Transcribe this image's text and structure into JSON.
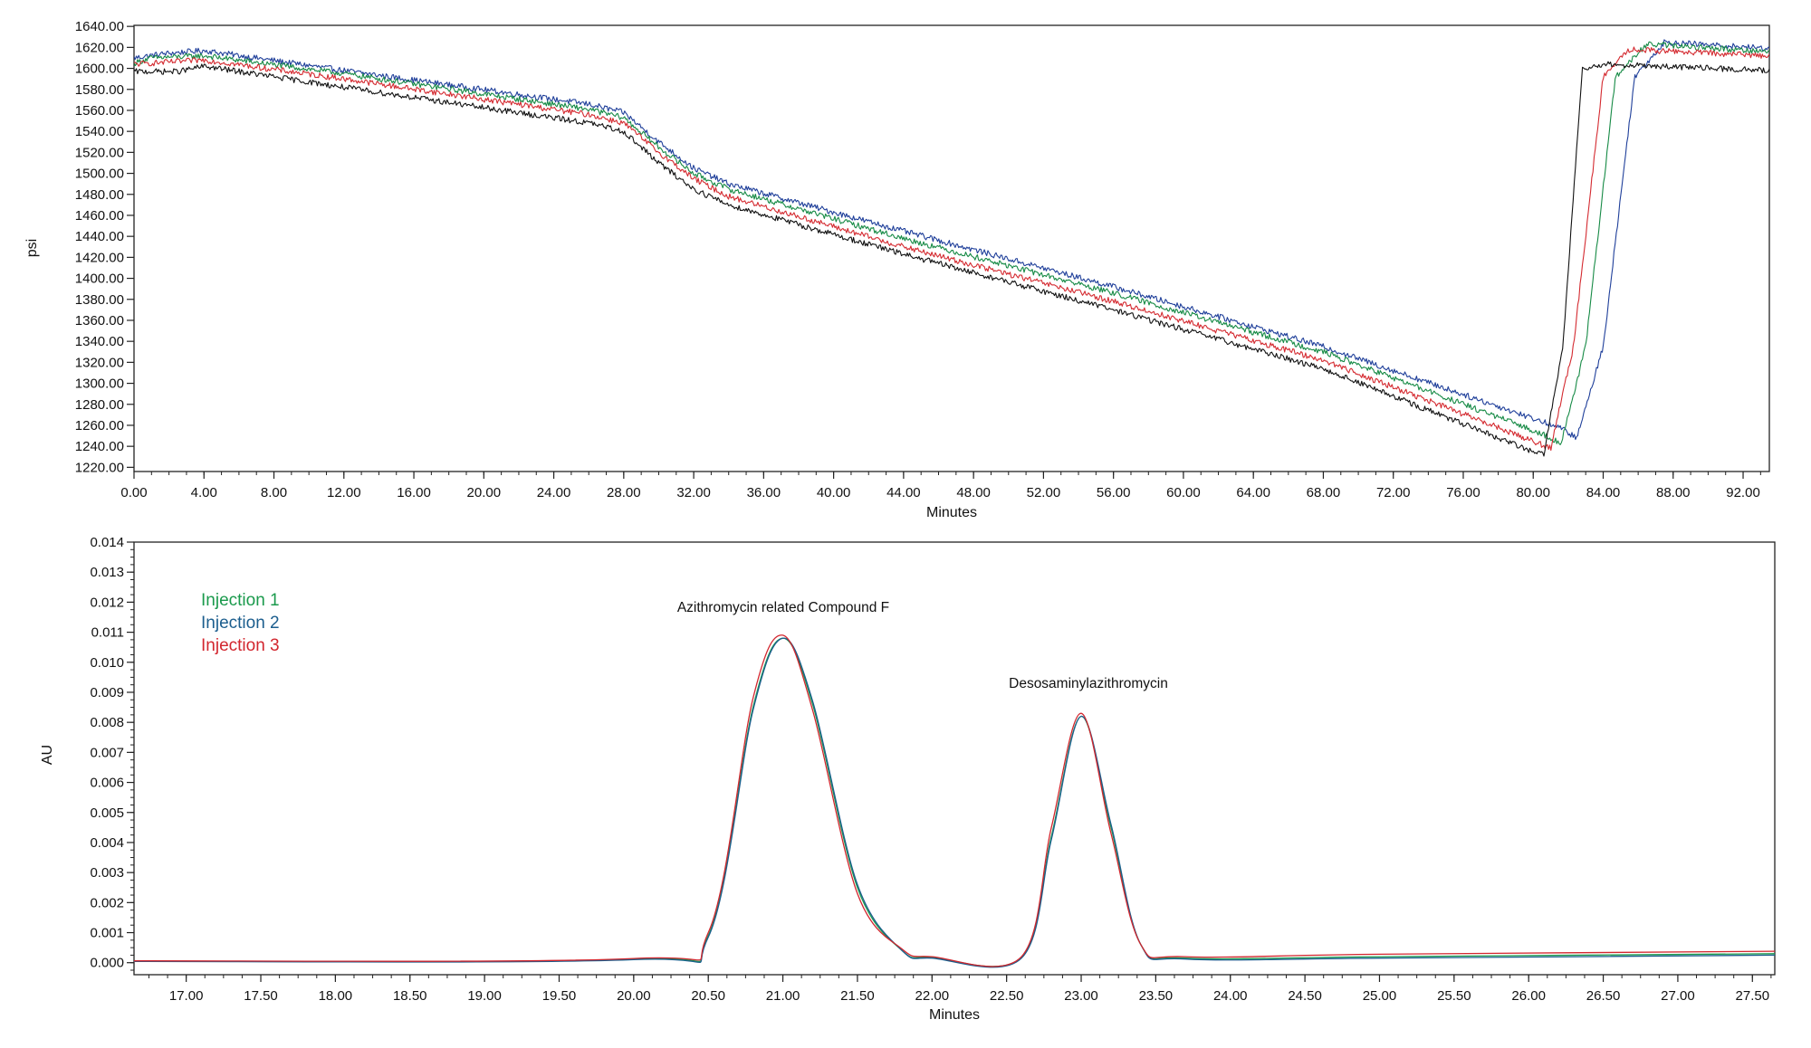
{
  "chart_data": [
    {
      "type": "line",
      "xlabel": "Minutes",
      "ylabel": "psi",
      "xlim": [
        0,
        93.5
      ],
      "ylim": [
        1216,
        1641
      ],
      "x_ticks": [
        0,
        4,
        8,
        12,
        16,
        20,
        24,
        28,
        32,
        36,
        40,
        44,
        48,
        52,
        56,
        60,
        64,
        68,
        72,
        76,
        80,
        84,
        88,
        92
      ],
      "x_tick_labels": [
        "0.00",
        "4.00",
        "8.00",
        "12.00",
        "16.00",
        "20.00",
        "24.00",
        "28.00",
        "32.00",
        "36.00",
        "40.00",
        "44.00",
        "48.00",
        "52.00",
        "56.00",
        "60.00",
        "64.00",
        "68.00",
        "72.00",
        "76.00",
        "80.00",
        "84.00",
        "88.00",
        "92.00"
      ],
      "y_ticks": [
        1220,
        1240,
        1260,
        1280,
        1300,
        1320,
        1340,
        1360,
        1380,
        1400,
        1420,
        1440,
        1460,
        1480,
        1500,
        1520,
        1540,
        1560,
        1580,
        1600,
        1620,
        1640
      ],
      "y_tick_labels": [
        "1220.00",
        "1240.00",
        "1260.00",
        "1280.00",
        "1300.00",
        "1320.00",
        "1340.00",
        "1360.00",
        "1380.00",
        "1400.00",
        "1420.00",
        "1440.00",
        "1460.00",
        "1480.00",
        "1500.00",
        "1520.00",
        "1540.00",
        "1560.00",
        "1580.00",
        "1600.00",
        "1620.00",
        "1640.00"
      ],
      "legend": "none",
      "series": [
        {
          "color": "#1f3f9a",
          "x": [
            0,
            1.7,
            4,
            12,
            26,
            28,
            30,
            32,
            34,
            44,
            56,
            68,
            81.5,
            82.5,
            84,
            85.8,
            87.5,
            93.5
          ],
          "y": [
            1610,
            1614,
            1617,
            1598,
            1566,
            1558,
            1530,
            1505,
            1490,
            1445,
            1392,
            1335,
            1258,
            1248,
            1335,
            1592,
            1625,
            1619
          ]
        },
        {
          "color": "#168a45",
          "x": [
            0,
            1,
            4,
            12,
            26,
            28,
            30,
            32,
            34,
            44,
            56,
            68,
            80.5,
            81.6,
            83,
            84.7,
            86.5,
            93.5
          ],
          "y": [
            1605,
            1610,
            1612,
            1595,
            1561,
            1553,
            1525,
            1500,
            1485,
            1438,
            1386,
            1330,
            1252,
            1243,
            1335,
            1592,
            1623,
            1616
          ]
        },
        {
          "color": "#d42a30",
          "x": [
            0,
            1,
            4,
            12,
            26,
            28,
            30,
            32,
            34,
            44,
            56,
            68,
            80,
            81,
            82.3,
            84,
            85.5,
            93.5
          ],
          "y": [
            1604,
            1605,
            1608,
            1590,
            1556,
            1548,
            1520,
            1495,
            1478,
            1430,
            1378,
            1322,
            1245,
            1238,
            1335,
            1592,
            1618,
            1612
          ]
        },
        {
          "color": "#111111",
          "x": [
            0,
            2.5,
            4,
            12,
            26,
            28,
            30,
            32,
            34,
            44,
            56,
            68,
            79.5,
            80.6,
            81.7,
            82.8,
            84,
            93.5
          ],
          "y": [
            1597,
            1597,
            1602,
            1582,
            1548,
            1540,
            1510,
            1485,
            1470,
            1423,
            1370,
            1314,
            1238,
            1232,
            1335,
            1600,
            1604,
            1598
          ]
        }
      ]
    },
    {
      "type": "line",
      "xlabel": "Minutes",
      "ylabel": "AU",
      "xlim": [
        16.65,
        27.65
      ],
      "ylim": [
        -0.0004,
        0.014
      ],
      "x_ticks": [
        17,
        17.5,
        18,
        18.5,
        19,
        19.5,
        20,
        20.5,
        21,
        21.5,
        22,
        22.5,
        23,
        23.5,
        24,
        24.5,
        25,
        25.5,
        26,
        26.5,
        27,
        27.5
      ],
      "x_tick_labels": [
        "17.00",
        "17.50",
        "18.00",
        "18.50",
        "19.00",
        "19.50",
        "20.00",
        "20.50",
        "21.00",
        "21.50",
        "22.00",
        "22.50",
        "23.00",
        "23.50",
        "24.00",
        "24.50",
        "25.00",
        "25.50",
        "26.00",
        "26.50",
        "27.00",
        "27.50"
      ],
      "y_ticks": [
        0,
        0.001,
        0.002,
        0.003,
        0.004,
        0.005,
        0.006,
        0.007,
        0.008,
        0.009,
        0.01,
        0.011,
        0.012,
        0.013,
        0.014
      ],
      "y_tick_labels": [
        "0.000",
        "0.001",
        "0.002",
        "0.003",
        "0.004",
        "0.005",
        "0.006",
        "0.007",
        "0.008",
        "0.009",
        "0.010",
        "0.011",
        "0.012",
        "0.013",
        "0.014"
      ],
      "legend": "top-left",
      "legend_entries": [
        {
          "name": "Injection 1",
          "color": "#1a9a4c"
        },
        {
          "name": "Injection 2",
          "color": "#1c5e8e"
        },
        {
          "name": "Injection 3",
          "color": "#d2262e"
        }
      ],
      "peaks": [
        {
          "label": "Azithromycin related Compound F",
          "x": 21.0,
          "height": 0.0108
        },
        {
          "label": "Desosaminylazithromycin",
          "x": 23.0,
          "height": 0.0082
        }
      ],
      "series": [
        {
          "name": "Injection 1",
          "color": "#1a9a4c",
          "x": [
            16.65,
            20.0,
            20.5,
            20.8,
            21.0,
            21.2,
            21.5,
            21.8,
            22.0,
            22.6,
            22.8,
            23.0,
            23.2,
            23.4,
            23.7,
            25.0,
            27.65
          ],
          "y": [
            5e-05,
            0.00012,
            0.0009,
            0.0085,
            0.0108,
            0.0086,
            0.0025,
            0.0004,
            0.00018,
            0.00018,
            0.0042,
            0.0082,
            0.0045,
            0.0006,
            0.00015,
            0.0002,
            0.0003
          ]
        },
        {
          "name": "Injection 2",
          "color": "#1c5e8e",
          "x": [
            16.65,
            20.0,
            20.5,
            20.8,
            21.0,
            21.2,
            21.5,
            21.8,
            22.0,
            22.6,
            22.8,
            23.0,
            23.2,
            23.4,
            23.7,
            25.0,
            27.65
          ],
          "y": [
            4e-05,
            0.0001,
            0.00085,
            0.0084,
            0.0108,
            0.0087,
            0.0026,
            0.0004,
            0.00015,
            0.00015,
            0.0041,
            0.0082,
            0.0046,
            0.0006,
            0.00012,
            0.00015,
            0.00025
          ]
        },
        {
          "name": "Injection 3",
          "color": "#d2262e",
          "x": [
            16.65,
            20.0,
            20.5,
            20.8,
            21.0,
            21.2,
            21.5,
            21.8,
            22.0,
            22.6,
            22.8,
            23.0,
            23.2,
            23.4,
            23.7,
            25.0,
            27.65
          ],
          "y": [
            6e-05,
            0.00014,
            0.001,
            0.0088,
            0.0109,
            0.0084,
            0.0023,
            0.00045,
            0.0002,
            0.0002,
            0.0045,
            0.0083,
            0.0043,
            0.0006,
            0.0002,
            0.00028,
            0.00038
          ]
        }
      ]
    }
  ]
}
